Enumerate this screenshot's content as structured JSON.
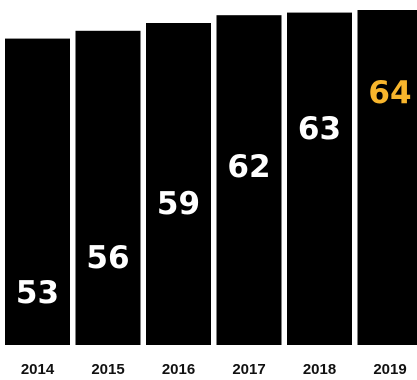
{
  "chart_data": {
    "type": "bar",
    "categories": [
      "2014",
      "2015",
      "2016",
      "2017",
      "2018",
      "2019"
    ],
    "values": [
      53,
      56,
      59,
      62,
      63,
      64
    ],
    "data_labels": [
      "53",
      "56",
      "59",
      "62",
      "63",
      "64"
    ],
    "highlight_index": 5,
    "title": "",
    "xlabel": "",
    "ylabel": "",
    "ylim": [
      0,
      64
    ],
    "grid": false,
    "legend": "none"
  },
  "colors": {
    "bar": "#000000",
    "label": "#ffffff",
    "highlight_label": "#f7b52c",
    "tick": "#111111"
  }
}
